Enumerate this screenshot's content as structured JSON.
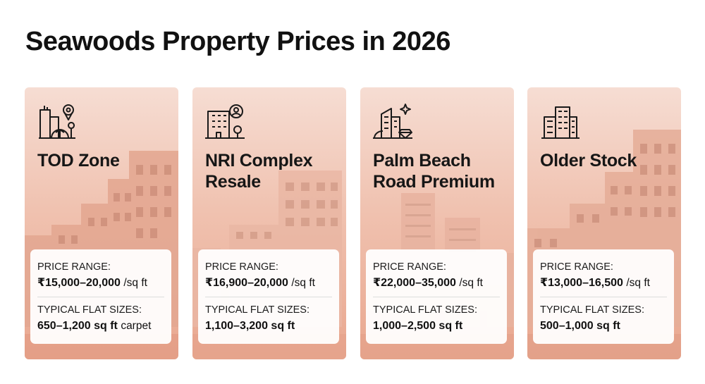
{
  "page": {
    "title": "Seawoods Property Prices in 2026"
  },
  "labels": {
    "price_range": "PRICE RANGE:",
    "flat_sizes": "TYPICAL FLAT SIZES:"
  },
  "cards": [
    {
      "name": "TOD Zone",
      "icon": "city-location-pin-icon",
      "price": "₹15,000–20,000",
      "price_unit": "/sq ft",
      "size": "650–1,200 sq ft",
      "size_note": "carpet"
    },
    {
      "name": "NRI Complex\nResale",
      "icon": "building-person-icon",
      "price": "₹16,900–20,000",
      "price_unit": "/sq ft",
      "size": "1,100–3,200 sq ft",
      "size_note": ""
    },
    {
      "name": "Palm Beach\nRoad Premium",
      "icon": "tower-sparkle-diamond-icon",
      "price": "₹22,000–35,000",
      "price_unit": "/sq ft",
      "size": "1,000–2,500 sq ft",
      "size_note": ""
    },
    {
      "name": "Older Stock",
      "icon": "apartment-block-icon",
      "price": "₹13,000–16,500",
      "price_unit": "/sq ft",
      "size": "500–1,000 sq ft",
      "size_note": ""
    }
  ],
  "colors": {
    "card_top": "#f6ddd3",
    "card_bottom": "#e9a78f",
    "icon_stroke": "#1a1a1a"
  }
}
